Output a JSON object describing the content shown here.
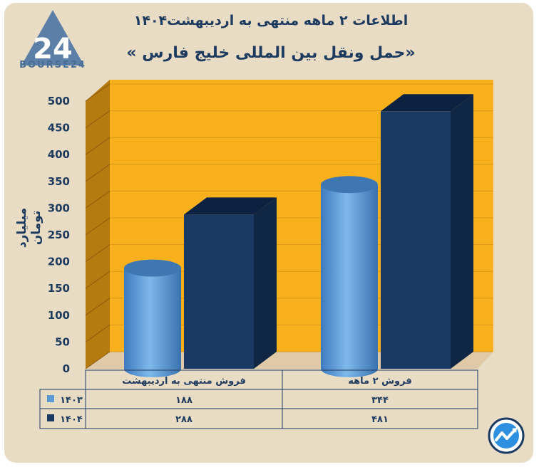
{
  "brand": {
    "name": "BOURSE24",
    "mark": "24"
  },
  "colors": {
    "background": "#e9dcc5",
    "plot": "#f8b11c",
    "wall": "#b57a10",
    "s1403": "#5b9bd5",
    "s1404": "#1b3a63"
  },
  "chart_data": {
    "type": "bar",
    "title": "اطلاعات ۲ ماهه منتهی به اردیبهشت۱۴۰۴",
    "subtitle": "«حمل ونقل بین المللی خلیج فارس »",
    "ylabel": "میلیارد تومان",
    "xlabel": "",
    "ylim": [
      0,
      500
    ],
    "y_ticks": [
      0,
      50,
      100,
      150,
      200,
      250,
      300,
      350,
      400,
      450,
      500
    ],
    "y_tick_labels": [
      "0",
      "50",
      "100",
      "150",
      "200",
      "250",
      "300",
      "350",
      "400",
      "450",
      "500"
    ],
    "categories": [
      "فروش منتهی به  اردیبهشت",
      "فروش ۲  ماهه"
    ],
    "series": [
      {
        "name": "۱۴۰۳",
        "values": [
          188,
          344
        ],
        "value_labels": [
          "۱۸۸",
          "۳۴۴"
        ],
        "shape": "cylinder"
      },
      {
        "name": "۱۴۰۴",
        "values": [
          288,
          481
        ],
        "value_labels": [
          "۲۸۸",
          "۴۸۱"
        ],
        "shape": "box"
      }
    ],
    "legend": "table-left",
    "grid": true
  }
}
